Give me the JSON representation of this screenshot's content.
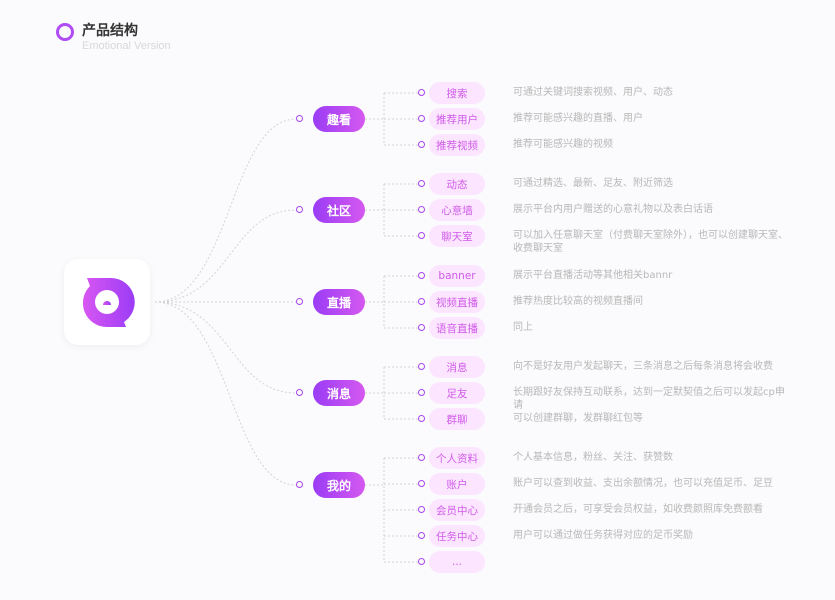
{
  "header": {
    "title": "产品结构",
    "subtitle": "Emotional Version"
  },
  "accent": "#a646ee",
  "groups": [
    {
      "label": "趣看",
      "items": [
        {
          "label": "搜索",
          "desc": "可通过关键词搜索视频、用户、动态"
        },
        {
          "label": "推荐用户",
          "desc": "推荐可能感兴趣的直播、用户"
        },
        {
          "label": "推荐视频",
          "desc": "推荐可能感兴趣的视频"
        }
      ]
    },
    {
      "label": "社区",
      "items": [
        {
          "label": "动态",
          "desc": "可通过精选、最新、足友、附近筛选"
        },
        {
          "label": "心意墙",
          "desc": "展示平台内用户赠送的心意礼物以及表白话语"
        },
        {
          "label": "聊天室",
          "desc": "可以加入任意聊天室（付费聊天室除外），也可以创建聊天室、收费聊天室"
        }
      ]
    },
    {
      "label": "直播",
      "items": [
        {
          "label": "banner",
          "desc": "展示平台直播活动等其他相关bannr"
        },
        {
          "label": "视频直播",
          "desc": "推荐热度比较高的视频直播间"
        },
        {
          "label": "语音直播",
          "desc": "同上"
        }
      ]
    },
    {
      "label": "消息",
      "items": [
        {
          "label": "消息",
          "desc": "向不是好友用户发起聊天，三条消息之后每条消息将会收费"
        },
        {
          "label": "足友",
          "desc": "长期跟好友保持互动联系，达到一定默契值之后可以发起cp申请"
        },
        {
          "label": "群聊",
          "desc": "可以创建群聊，发群聊红包等"
        }
      ]
    },
    {
      "label": "我的",
      "items": [
        {
          "label": "个人资料",
          "desc": "个人基本信息，粉丝、关注、获赞数"
        },
        {
          "label": "账户",
          "desc": "账户可以查到收益、支出余额情况，也可以充值足币、足豆"
        },
        {
          "label": "会员中心",
          "desc": "开通会员之后，可享受会员权益，如收费颜照库免费额看"
        },
        {
          "label": "任务中心",
          "desc": "用户可以通过做任务获得对应的足币奖励"
        },
        {
          "label": "...",
          "desc": ""
        }
      ]
    }
  ]
}
